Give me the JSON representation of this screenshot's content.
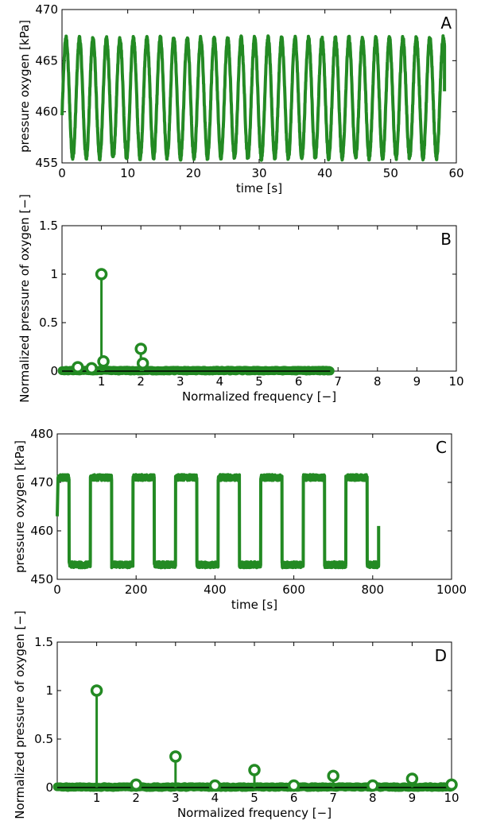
{
  "chart_data": [
    {
      "id": "A",
      "type": "line",
      "panel_label": "A",
      "xlabel": "time [s]",
      "ylabel": "pressure oxygen [kPa]",
      "xlim": [
        0,
        60
      ],
      "ylim": [
        455,
        470
      ],
      "xticks": [
        0,
        10,
        20,
        30,
        40,
        50,
        60
      ],
      "yticks": [
        455,
        460,
        465,
        470
      ],
      "series": [
        {
          "name": "pressure",
          "color": "#238a23",
          "shape": "sine",
          "start": 0,
          "end": 58.2,
          "min": 455.5,
          "max": 467.2,
          "period": 2.05,
          "first_value": 462.0,
          "last_value": 462.0
        }
      ]
    },
    {
      "id": "B",
      "type": "stem",
      "panel_label": "B",
      "xlabel": "Normalized frequency [−]",
      "ylabel": "Normalized pressure of oxygen [−]",
      "xlim": [
        0,
        10
      ],
      "ylim": [
        0,
        1.5
      ],
      "xticks": [
        1,
        2,
        3,
        4,
        5,
        6,
        7,
        8,
        9,
        10
      ],
      "yticks": [
        0,
        0.5,
        1,
        1.5
      ],
      "baseline_range": [
        0,
        6.8
      ],
      "noise_level": 0.01,
      "peaks": [
        {
          "x": 1,
          "y": 1.0
        },
        {
          "x": 2,
          "y": 0.23
        },
        {
          "x": 0.4,
          "y": 0.04
        },
        {
          "x": 0.75,
          "y": 0.03
        },
        {
          "x": 1.05,
          "y": 0.1
        },
        {
          "x": 2.05,
          "y": 0.08
        }
      ],
      "color": "#238a23"
    },
    {
      "id": "C",
      "type": "line",
      "panel_label": "C",
      "xlabel": "time [s]",
      "ylabel": "pressure oxygen [kPa]",
      "xlim": [
        0,
        1000
      ],
      "ylim": [
        450,
        480
      ],
      "xticks": [
        0,
        200,
        400,
        600,
        800,
        1000
      ],
      "yticks": [
        450,
        460,
        470,
        480
      ],
      "series": [
        {
          "name": "pressure",
          "color": "#238a23",
          "shape": "square",
          "start": 0,
          "end": 815,
          "low": 453.0,
          "high": 471.0,
          "period": 108,
          "first_value": 463.0,
          "last_value": 461.0
        }
      ]
    },
    {
      "id": "D",
      "type": "stem",
      "panel_label": "D",
      "xlabel": "Normalized frequency [−]",
      "ylabel": "Normalized pressure of oxygen [−]",
      "xlim": [
        0,
        10
      ],
      "ylim": [
        0,
        1.5
      ],
      "xticks": [
        1,
        2,
        3,
        4,
        5,
        6,
        7,
        8,
        9,
        10
      ],
      "yticks": [
        0,
        0.5,
        1,
        1.5
      ],
      "baseline_range": [
        0,
        10
      ],
      "noise_level": 0.01,
      "peaks": [
        {
          "x": 1,
          "y": 1.0
        },
        {
          "x": 2,
          "y": 0.03
        },
        {
          "x": 3,
          "y": 0.32
        },
        {
          "x": 4,
          "y": 0.02
        },
        {
          "x": 5,
          "y": 0.18
        },
        {
          "x": 6,
          "y": 0.02
        },
        {
          "x": 7,
          "y": 0.12
        },
        {
          "x": 8,
          "y": 0.02
        },
        {
          "x": 9,
          "y": 0.09
        },
        {
          "x": 10,
          "y": 0.03
        }
      ],
      "color": "#238a23"
    }
  ]
}
